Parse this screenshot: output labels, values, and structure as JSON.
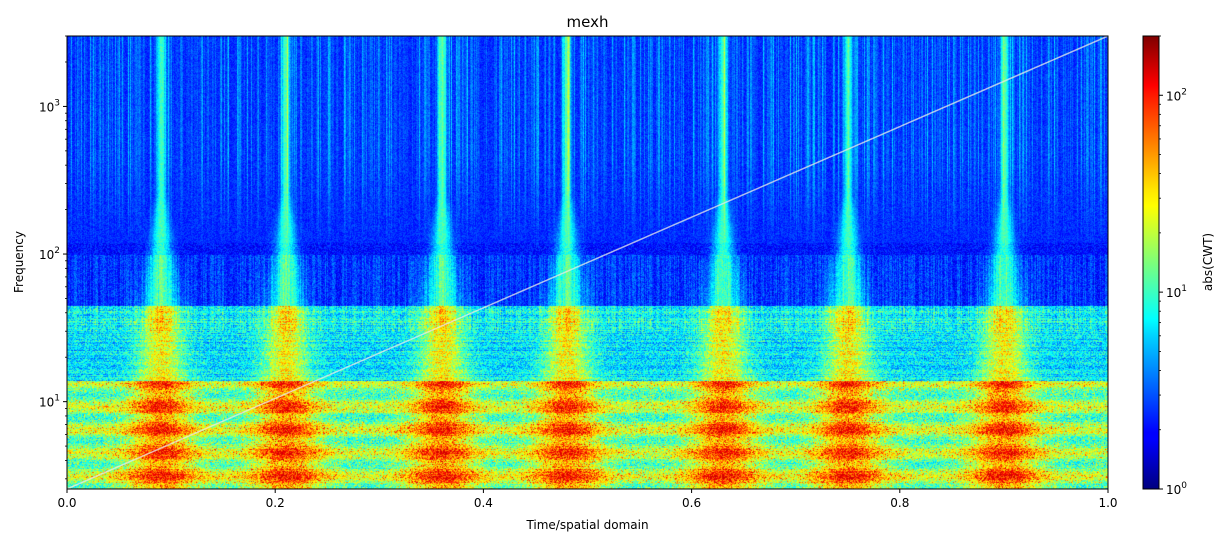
{
  "chart_data": {
    "type": "heatmap",
    "title": "mexh",
    "xlabel": "Time/spatial domain",
    "ylabel": "Frequency",
    "xlim": [
      0.0,
      1.0
    ],
    "ylim": [
      2.56,
      3000
    ],
    "yscale": "log",
    "colormap": "jet",
    "x_ticks": [
      0.0,
      0.2,
      0.4,
      0.6,
      0.8,
      1.0
    ],
    "x_tick_labels": [
      "0.0",
      "0.2",
      "0.4",
      "0.6",
      "0.8",
      "1.0"
    ],
    "y_ticks": [
      10,
      100,
      1000
    ],
    "y_tick_labels": [
      {
        "base": "10",
        "exp": "1"
      },
      {
        "base": "10",
        "exp": "2"
      },
      {
        "base": "10",
        "exp": "3"
      }
    ],
    "colorbar": {
      "label": "abs(CWT)",
      "scale": "log",
      "range": [
        1,
        200
      ],
      "ticks": [
        1,
        10,
        100
      ],
      "tick_labels": [
        {
          "base": "10",
          "exp": "0"
        },
        {
          "base": "10",
          "exp": "1"
        },
        {
          "base": "10",
          "exp": "2"
        }
      ]
    },
    "chirp_line": {
      "x": [
        0.0,
        1.0
      ],
      "y": [
        2.56,
        3000
      ],
      "color": "#e8e8e8"
    },
    "burst_times": [
      0.09,
      0.21,
      0.36,
      0.48,
      0.63,
      0.75,
      0.9
    ],
    "grid": false
  }
}
